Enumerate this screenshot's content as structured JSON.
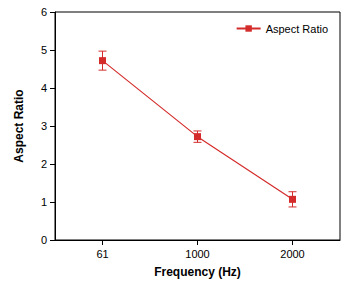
{
  "chart_data": {
    "type": "line",
    "x_label": "Frequency (Hz)",
    "y_label": "Aspect Ratio",
    "categories": [
      "61",
      "1000",
      "2000"
    ],
    "series": [
      {
        "name": "Aspect Ratio",
        "color": "#d42b2b",
        "values": [
          4.72,
          2.72,
          1.07
        ],
        "errors": [
          0.25,
          0.15,
          0.2
        ],
        "marker": "square",
        "line_style": "solid"
      }
    ],
    "ylim": [
      0,
      6
    ],
    "yticks": [
      0,
      1,
      2,
      3,
      4,
      5,
      6
    ],
    "grid": false,
    "legend": "top-right"
  }
}
